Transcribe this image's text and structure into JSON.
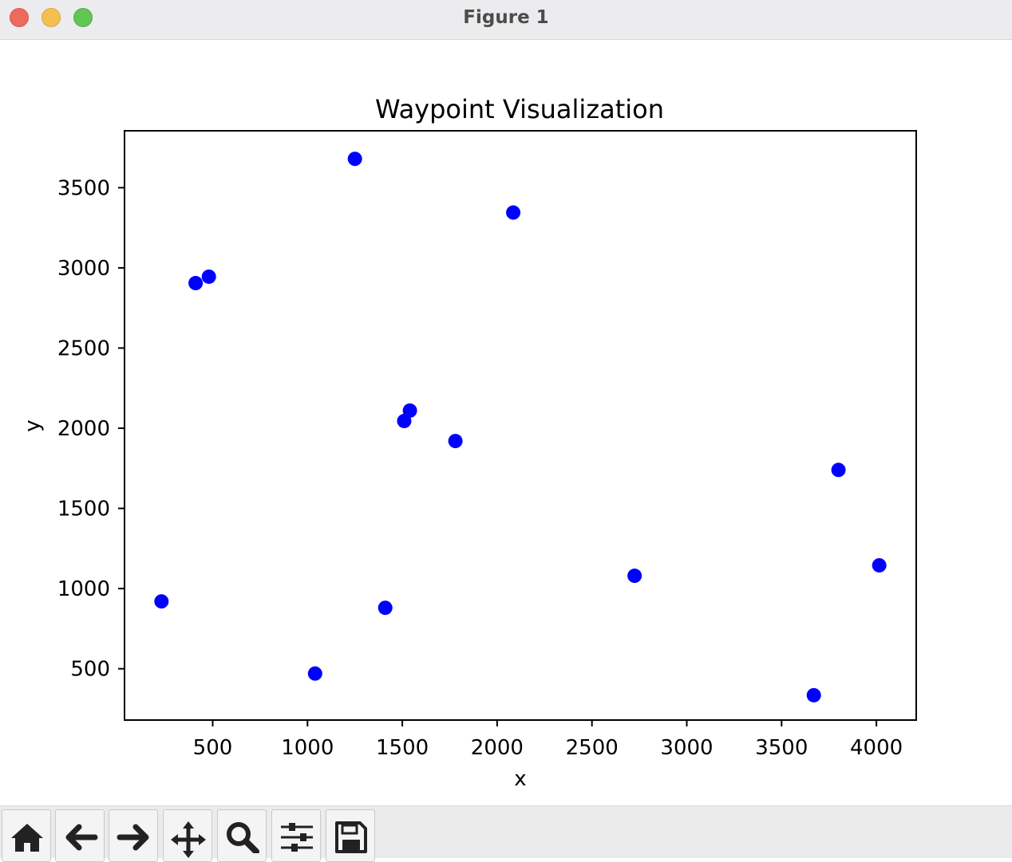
{
  "window": {
    "title": "Figure 1"
  },
  "toolbar": {
    "buttons": [
      {
        "name": "home",
        "icon": "home-icon"
      },
      {
        "name": "back",
        "icon": "arrow-left-icon"
      },
      {
        "name": "forward",
        "icon": "arrow-right-icon"
      },
      {
        "name": "pan",
        "icon": "move-icon"
      },
      {
        "name": "zoom",
        "icon": "magnifier-icon"
      },
      {
        "name": "configure",
        "icon": "sliders-icon"
      },
      {
        "name": "save",
        "icon": "floppy-disk-icon"
      }
    ]
  },
  "chart_data": {
    "type": "scatter",
    "title": "Waypoint Visualization",
    "xlabel": "x",
    "ylabel": "y",
    "xlim": [
      35,
      4210
    ],
    "ylim": [
      180,
      3855
    ],
    "xticks": [
      500,
      1000,
      1500,
      2000,
      2500,
      3000,
      3500,
      4000
    ],
    "yticks": [
      500,
      1000,
      1500,
      2000,
      2500,
      3000,
      3500
    ],
    "grid": false,
    "marker_color": "#0000ff",
    "points": [
      {
        "x": 1250,
        "y": 3680
      },
      {
        "x": 2085,
        "y": 3345
      },
      {
        "x": 480,
        "y": 2945
      },
      {
        "x": 410,
        "y": 2905
      },
      {
        "x": 1540,
        "y": 2110
      },
      {
        "x": 1510,
        "y": 2045
      },
      {
        "x": 1780,
        "y": 1920
      },
      {
        "x": 3800,
        "y": 1740
      },
      {
        "x": 4015,
        "y": 1145
      },
      {
        "x": 2725,
        "y": 1080
      },
      {
        "x": 230,
        "y": 920
      },
      {
        "x": 1410,
        "y": 880
      },
      {
        "x": 1040,
        "y": 470
      },
      {
        "x": 3670,
        "y": 335
      }
    ]
  }
}
